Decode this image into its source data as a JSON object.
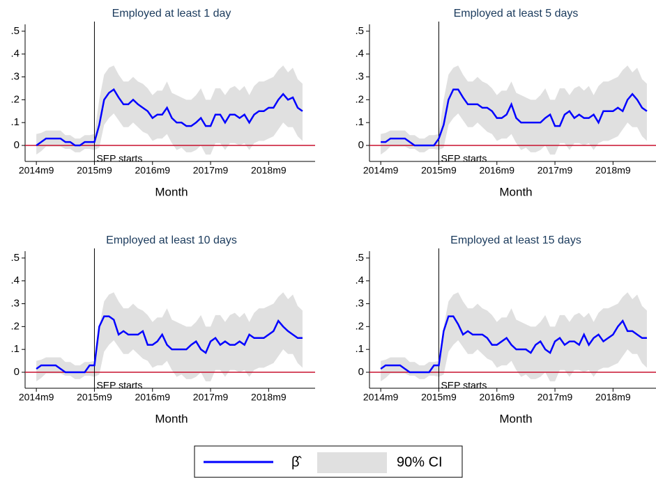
{
  "chart_data": [
    {
      "type": "line",
      "title": "Employed at least 1 day",
      "x_label": "Month",
      "vline": "2015m9",
      "annotation": "SEP starts",
      "x": [
        "2014m9",
        "2014m10",
        "2014m11",
        "2014m12",
        "2015m1",
        "2015m2",
        "2015m3",
        "2015m4",
        "2015m5",
        "2015m6",
        "2015m7",
        "2015m8",
        "2015m9",
        "2015m10",
        "2015m11",
        "2015m12",
        "2016m1",
        "2016m2",
        "2016m3",
        "2016m4",
        "2016m5",
        "2016m6",
        "2016m7",
        "2016m8",
        "2016m9",
        "2016m10",
        "2016m11",
        "2016m12",
        "2017m1",
        "2017m2",
        "2017m3",
        "2017m4",
        "2017m5",
        "2017m6",
        "2017m7",
        "2017m8",
        "2017m9",
        "2017m10",
        "2017m11",
        "2017m12",
        "2018m1",
        "2018m2",
        "2018m3",
        "2018m4",
        "2018m5",
        "2018m6",
        "2018m7",
        "2018m8",
        "2018m9",
        "2018m10",
        "2018m11",
        "2018m12",
        "2019m1",
        "2019m2",
        "2019m3",
        "2019m4"
      ],
      "xticks": [
        "2014m9",
        "2015m9",
        "2016m9",
        "2017m9",
        "2018m9"
      ],
      "ylim": [
        -0.07,
        0.53
      ],
      "yticks": [
        0,
        {
          "value": 0.1,
          "label": ".1"
        },
        {
          "value": 0.2,
          "label": ".2"
        },
        {
          "value": 0.3,
          "label": ".3"
        },
        {
          "value": 0.4,
          "label": ".4"
        },
        {
          "value": 0.5,
          "label": ".5"
        }
      ],
      "refline": {
        "value": 0,
        "color": "#c8102e"
      },
      "series": [
        {
          "values": [
            0,
            0.015,
            0.03,
            0.03,
            0.03,
            0.03,
            0.015,
            0.015,
            0,
            0,
            0.015,
            0.015,
            0.015,
            0.09,
            0.2,
            0.23,
            0.245,
            0.21,
            0.18,
            0.18,
            0.2,
            0.18,
            0.165,
            0.15,
            0.12,
            0.135,
            0.135,
            0.165,
            0.12,
            0.1,
            0.1,
            0.085,
            0.085,
            0.1,
            0.12,
            0.085,
            0.085,
            0.135,
            0.135,
            0.1,
            0.135,
            0.135,
            0.12,
            0.135,
            0.1,
            0.135,
            0.15,
            0.15,
            0.165,
            0.165,
            0.2,
            0.225,
            0.2,
            0.21,
            0.165,
            0.15
          ]
        }
      ],
      "band": {
        "low": [
          -0.04,
          -0.025,
          -0.005,
          -0.005,
          -0.005,
          -0.005,
          -0.015,
          -0.015,
          -0.03,
          -0.03,
          -0.015,
          -0.015,
          -0.02,
          -0.01,
          0.09,
          0.12,
          0.14,
          0.11,
          0.08,
          0.08,
          0.1,
          0.08,
          0.06,
          0.05,
          0.02,
          0.03,
          0.03,
          0.05,
          0.01,
          -0.02,
          -0.01,
          -0.03,
          -0.03,
          -0.02,
          0,
          -0.04,
          -0.04,
          0.01,
          0.01,
          -0.02,
          0.01,
          0.01,
          0,
          0.01,
          -0.02,
          0.01,
          0.02,
          0.02,
          0.03,
          0.04,
          0.07,
          0.1,
          0.08,
          0.08,
          0.04,
          0.02
        ],
        "high": [
          0.05,
          0.055,
          0.065,
          0.065,
          0.065,
          0.065,
          0.045,
          0.045,
          0.03,
          0.03,
          0.045,
          0.045,
          0.05,
          0.2,
          0.31,
          0.34,
          0.35,
          0.31,
          0.28,
          0.28,
          0.3,
          0.28,
          0.27,
          0.25,
          0.22,
          0.24,
          0.24,
          0.28,
          0.23,
          0.22,
          0.21,
          0.2,
          0.2,
          0.22,
          0.25,
          0.2,
          0.2,
          0.25,
          0.25,
          0.22,
          0.25,
          0.26,
          0.24,
          0.26,
          0.22,
          0.26,
          0.28,
          0.28,
          0.29,
          0.3,
          0.33,
          0.35,
          0.32,
          0.34,
          0.29,
          0.27
        ]
      }
    },
    {
      "type": "line",
      "title": "Employed at least 5 days",
      "x_label": "Month",
      "vline": "2015m9",
      "annotation": "SEP starts",
      "x": [
        "2014m9",
        "2014m10",
        "2014m11",
        "2014m12",
        "2015m1",
        "2015m2",
        "2015m3",
        "2015m4",
        "2015m5",
        "2015m6",
        "2015m7",
        "2015m8",
        "2015m9",
        "2015m10",
        "2015m11",
        "2015m12",
        "2016m1",
        "2016m2",
        "2016m3",
        "2016m4",
        "2016m5",
        "2016m6",
        "2016m7",
        "2016m8",
        "2016m9",
        "2016m10",
        "2016m11",
        "2016m12",
        "2017m1",
        "2017m2",
        "2017m3",
        "2017m4",
        "2017m5",
        "2017m6",
        "2017m7",
        "2017m8",
        "2017m9",
        "2017m10",
        "2017m11",
        "2017m12",
        "2018m1",
        "2018m2",
        "2018m3",
        "2018m4",
        "2018m5",
        "2018m6",
        "2018m7",
        "2018m8",
        "2018m9",
        "2018m10",
        "2018m11",
        "2018m12",
        "2019m1",
        "2019m2",
        "2019m3",
        "2019m4"
      ],
      "xticks": [
        "2014m9",
        "2015m9",
        "2016m9",
        "2017m9",
        "2018m9"
      ],
      "ylim": [
        -0.07,
        0.53
      ],
      "yticks": [
        0,
        {
          "value": 0.1,
          "label": ".1"
        },
        {
          "value": 0.2,
          "label": ".2"
        },
        {
          "value": 0.3,
          "label": ".3"
        },
        {
          "value": 0.4,
          "label": ".4"
        },
        {
          "value": 0.5,
          "label": ".5"
        }
      ],
      "refline": {
        "value": 0,
        "color": "#c8102e"
      },
      "series": [
        {
          "values": [
            0.015,
            0.015,
            0.03,
            0.03,
            0.03,
            0.03,
            0.015,
            0,
            0,
            0,
            0,
            0,
            0.03,
            0.09,
            0.2,
            0.245,
            0.245,
            0.21,
            0.18,
            0.18,
            0.18,
            0.165,
            0.165,
            0.15,
            0.12,
            0.12,
            0.135,
            0.18,
            0.12,
            0.1,
            0.1,
            0.1,
            0.1,
            0.1,
            0.12,
            0.135,
            0.085,
            0.085,
            0.135,
            0.15,
            0.12,
            0.135,
            0.12,
            0.12,
            0.135,
            0.1,
            0.15,
            0.15,
            0.15,
            0.165,
            0.15,
            0.2,
            0.225,
            0.2,
            0.165,
            0.15
          ]
        }
      ],
      "band": {
        "low": [
          -0.04,
          -0.025,
          -0.005,
          -0.005,
          -0.005,
          -0.005,
          -0.015,
          -0.015,
          -0.03,
          -0.03,
          -0.015,
          -0.015,
          -0.02,
          -0.01,
          0.09,
          0.12,
          0.14,
          0.11,
          0.08,
          0.08,
          0.1,
          0.08,
          0.06,
          0.05,
          0.02,
          0.03,
          0.03,
          0.05,
          0.01,
          -0.02,
          -0.01,
          -0.03,
          -0.03,
          -0.02,
          0,
          -0.04,
          -0.04,
          0.01,
          0.01,
          -0.02,
          0.01,
          0.01,
          0,
          0.01,
          -0.02,
          0.01,
          0.02,
          0.02,
          0.03,
          0.04,
          0.07,
          0.1,
          0.08,
          0.08,
          0.04,
          0.02
        ],
        "high": [
          0.05,
          0.055,
          0.065,
          0.065,
          0.065,
          0.065,
          0.045,
          0.045,
          0.03,
          0.03,
          0.045,
          0.045,
          0.05,
          0.2,
          0.31,
          0.34,
          0.35,
          0.31,
          0.28,
          0.28,
          0.3,
          0.28,
          0.27,
          0.25,
          0.22,
          0.24,
          0.24,
          0.28,
          0.23,
          0.22,
          0.21,
          0.2,
          0.2,
          0.22,
          0.25,
          0.2,
          0.2,
          0.25,
          0.25,
          0.22,
          0.25,
          0.26,
          0.24,
          0.26,
          0.22,
          0.26,
          0.28,
          0.28,
          0.29,
          0.3,
          0.33,
          0.35,
          0.32,
          0.34,
          0.29,
          0.27
        ]
      }
    },
    {
      "type": "line",
      "title": "Employed at least 10 days",
      "x_label": "Month",
      "vline": "2015m9",
      "annotation": "SEP starts",
      "x": [
        "2014m9",
        "2014m10",
        "2014m11",
        "2014m12",
        "2015m1",
        "2015m2",
        "2015m3",
        "2015m4",
        "2015m5",
        "2015m6",
        "2015m7",
        "2015m8",
        "2015m9",
        "2015m10",
        "2015m11",
        "2015m12",
        "2016m1",
        "2016m2",
        "2016m3",
        "2016m4",
        "2016m5",
        "2016m6",
        "2016m7",
        "2016m8",
        "2016m9",
        "2016m10",
        "2016m11",
        "2016m12",
        "2017m1",
        "2017m2",
        "2017m3",
        "2017m4",
        "2017m5",
        "2017m6",
        "2017m7",
        "2017m8",
        "2017m9",
        "2017m10",
        "2017m11",
        "2017m12",
        "2018m1",
        "2018m2",
        "2018m3",
        "2018m4",
        "2018m5",
        "2018m6",
        "2018m7",
        "2018m8",
        "2018m9",
        "2018m10",
        "2018m11",
        "2018m12",
        "2019m1",
        "2019m2",
        "2019m3",
        "2019m4"
      ],
      "xticks": [
        "2014m9",
        "2015m9",
        "2016m9",
        "2017m9",
        "2018m9"
      ],
      "ylim": [
        -0.07,
        0.53
      ],
      "yticks": [
        0,
        {
          "value": 0.1,
          "label": ".1"
        },
        {
          "value": 0.2,
          "label": ".2"
        },
        {
          "value": 0.3,
          "label": ".3"
        },
        {
          "value": 0.4,
          "label": ".4"
        },
        {
          "value": 0.5,
          "label": ".5"
        }
      ],
      "refline": {
        "value": 0,
        "color": "#c8102e"
      },
      "series": [
        {
          "values": [
            0.015,
            0.03,
            0.03,
            0.03,
            0.03,
            0.015,
            0,
            0,
            0,
            0,
            0,
            0.03,
            0.03,
            0.2,
            0.245,
            0.245,
            0.23,
            0.165,
            0.18,
            0.165,
            0.165,
            0.165,
            0.18,
            0.12,
            0.12,
            0.135,
            0.165,
            0.12,
            0.1,
            0.1,
            0.1,
            0.1,
            0.12,
            0.135,
            0.1,
            0.085,
            0.135,
            0.15,
            0.12,
            0.135,
            0.12,
            0.12,
            0.135,
            0.12,
            0.165,
            0.15,
            0.15,
            0.15,
            0.165,
            0.18,
            0.225,
            0.2,
            0.18,
            0.165,
            0.15,
            0.15
          ]
        }
      ],
      "band": {
        "low": [
          -0.04,
          -0.025,
          -0.005,
          -0.005,
          -0.005,
          -0.005,
          -0.015,
          -0.015,
          -0.03,
          -0.03,
          -0.015,
          -0.015,
          -0.02,
          -0.01,
          0.09,
          0.12,
          0.14,
          0.11,
          0.08,
          0.08,
          0.1,
          0.08,
          0.06,
          0.05,
          0.02,
          0.03,
          0.03,
          0.05,
          0.01,
          -0.02,
          -0.01,
          -0.03,
          -0.03,
          -0.02,
          0,
          -0.04,
          -0.04,
          0.01,
          0.01,
          -0.02,
          0.01,
          0.01,
          0,
          0.01,
          -0.02,
          0.01,
          0.02,
          0.02,
          0.03,
          0.04,
          0.07,
          0.1,
          0.08,
          0.08,
          0.04,
          0.02
        ],
        "high": [
          0.05,
          0.055,
          0.065,
          0.065,
          0.065,
          0.065,
          0.045,
          0.045,
          0.03,
          0.03,
          0.045,
          0.045,
          0.05,
          0.2,
          0.31,
          0.34,
          0.35,
          0.31,
          0.28,
          0.28,
          0.3,
          0.28,
          0.27,
          0.25,
          0.22,
          0.24,
          0.24,
          0.28,
          0.23,
          0.22,
          0.21,
          0.2,
          0.2,
          0.22,
          0.25,
          0.2,
          0.2,
          0.25,
          0.25,
          0.22,
          0.25,
          0.26,
          0.24,
          0.26,
          0.22,
          0.26,
          0.28,
          0.28,
          0.29,
          0.3,
          0.33,
          0.35,
          0.32,
          0.34,
          0.29,
          0.27
        ]
      }
    },
    {
      "type": "line",
      "title": "Employed at least 15 days",
      "x_label": "Month",
      "vline": "2015m9",
      "annotation": "SEP starts",
      "x": [
        "2014m9",
        "2014m10",
        "2014m11",
        "2014m12",
        "2015m1",
        "2015m2",
        "2015m3",
        "2015m4",
        "2015m5",
        "2015m6",
        "2015m7",
        "2015m8",
        "2015m9",
        "2015m10",
        "2015m11",
        "2015m12",
        "2016m1",
        "2016m2",
        "2016m3",
        "2016m4",
        "2016m5",
        "2016m6",
        "2016m7",
        "2016m8",
        "2016m9",
        "2016m10",
        "2016m11",
        "2016m12",
        "2017m1",
        "2017m2",
        "2017m3",
        "2017m4",
        "2017m5",
        "2017m6",
        "2017m7",
        "2017m8",
        "2017m9",
        "2017m10",
        "2017m11",
        "2017m12",
        "2018m1",
        "2018m2",
        "2018m3",
        "2018m4",
        "2018m5",
        "2018m6",
        "2018m7",
        "2018m8",
        "2018m9",
        "2018m10",
        "2018m11",
        "2018m12",
        "2019m1",
        "2019m2",
        "2019m3",
        "2019m4"
      ],
      "xticks": [
        "2014m9",
        "2015m9",
        "2016m9",
        "2017m9",
        "2018m9"
      ],
      "ylim": [
        -0.07,
        0.53
      ],
      "yticks": [
        0,
        {
          "value": 0.1,
          "label": ".1"
        },
        {
          "value": 0.2,
          "label": ".2"
        },
        {
          "value": 0.3,
          "label": ".3"
        },
        {
          "value": 0.4,
          "label": ".4"
        },
        {
          "value": 0.5,
          "label": ".5"
        }
      ],
      "refline": {
        "value": 0,
        "color": "#c8102e"
      },
      "series": [
        {
          "values": [
            0.015,
            0.03,
            0.03,
            0.03,
            0.03,
            0.015,
            0,
            0,
            0,
            0,
            0,
            0.03,
            0.03,
            0.18,
            0.245,
            0.245,
            0.21,
            0.165,
            0.18,
            0.165,
            0.165,
            0.165,
            0.15,
            0.12,
            0.12,
            0.135,
            0.15,
            0.12,
            0.1,
            0.1,
            0.1,
            0.085,
            0.12,
            0.135,
            0.1,
            0.085,
            0.135,
            0.15,
            0.12,
            0.135,
            0.135,
            0.12,
            0.165,
            0.12,
            0.15,
            0.165,
            0.135,
            0.15,
            0.165,
            0.2,
            0.225,
            0.18,
            0.18,
            0.165,
            0.15,
            0.15
          ]
        }
      ],
      "band": {
        "low": [
          -0.04,
          -0.025,
          -0.005,
          -0.005,
          -0.005,
          -0.005,
          -0.015,
          -0.015,
          -0.03,
          -0.03,
          -0.015,
          -0.015,
          -0.02,
          -0.01,
          0.09,
          0.12,
          0.14,
          0.11,
          0.08,
          0.08,
          0.1,
          0.08,
          0.06,
          0.05,
          0.02,
          0.03,
          0.03,
          0.05,
          0.01,
          -0.02,
          -0.01,
          -0.03,
          -0.03,
          -0.02,
          0,
          -0.04,
          -0.04,
          0.01,
          0.01,
          -0.02,
          0.01,
          0.01,
          0,
          0.01,
          -0.02,
          0.01,
          0.02,
          0.02,
          0.03,
          0.04,
          0.07,
          0.1,
          0.08,
          0.08,
          0.04,
          0.02
        ],
        "high": [
          0.05,
          0.055,
          0.065,
          0.065,
          0.065,
          0.065,
          0.045,
          0.045,
          0.03,
          0.03,
          0.045,
          0.045,
          0.05,
          0.2,
          0.31,
          0.34,
          0.35,
          0.31,
          0.28,
          0.28,
          0.3,
          0.28,
          0.27,
          0.25,
          0.22,
          0.24,
          0.24,
          0.28,
          0.23,
          0.22,
          0.21,
          0.2,
          0.2,
          0.22,
          0.25,
          0.2,
          0.2,
          0.25,
          0.25,
          0.22,
          0.25,
          0.26,
          0.24,
          0.26,
          0.22,
          0.26,
          0.28,
          0.28,
          0.29,
          0.3,
          0.33,
          0.35,
          0.32,
          0.34,
          0.29,
          0.27
        ]
      }
    }
  ],
  "legend": [
    {
      "label": "β̂",
      "color": "#0000ff"
    },
    {
      "label": "90% CI",
      "color": "#e0e0e0"
    }
  ]
}
